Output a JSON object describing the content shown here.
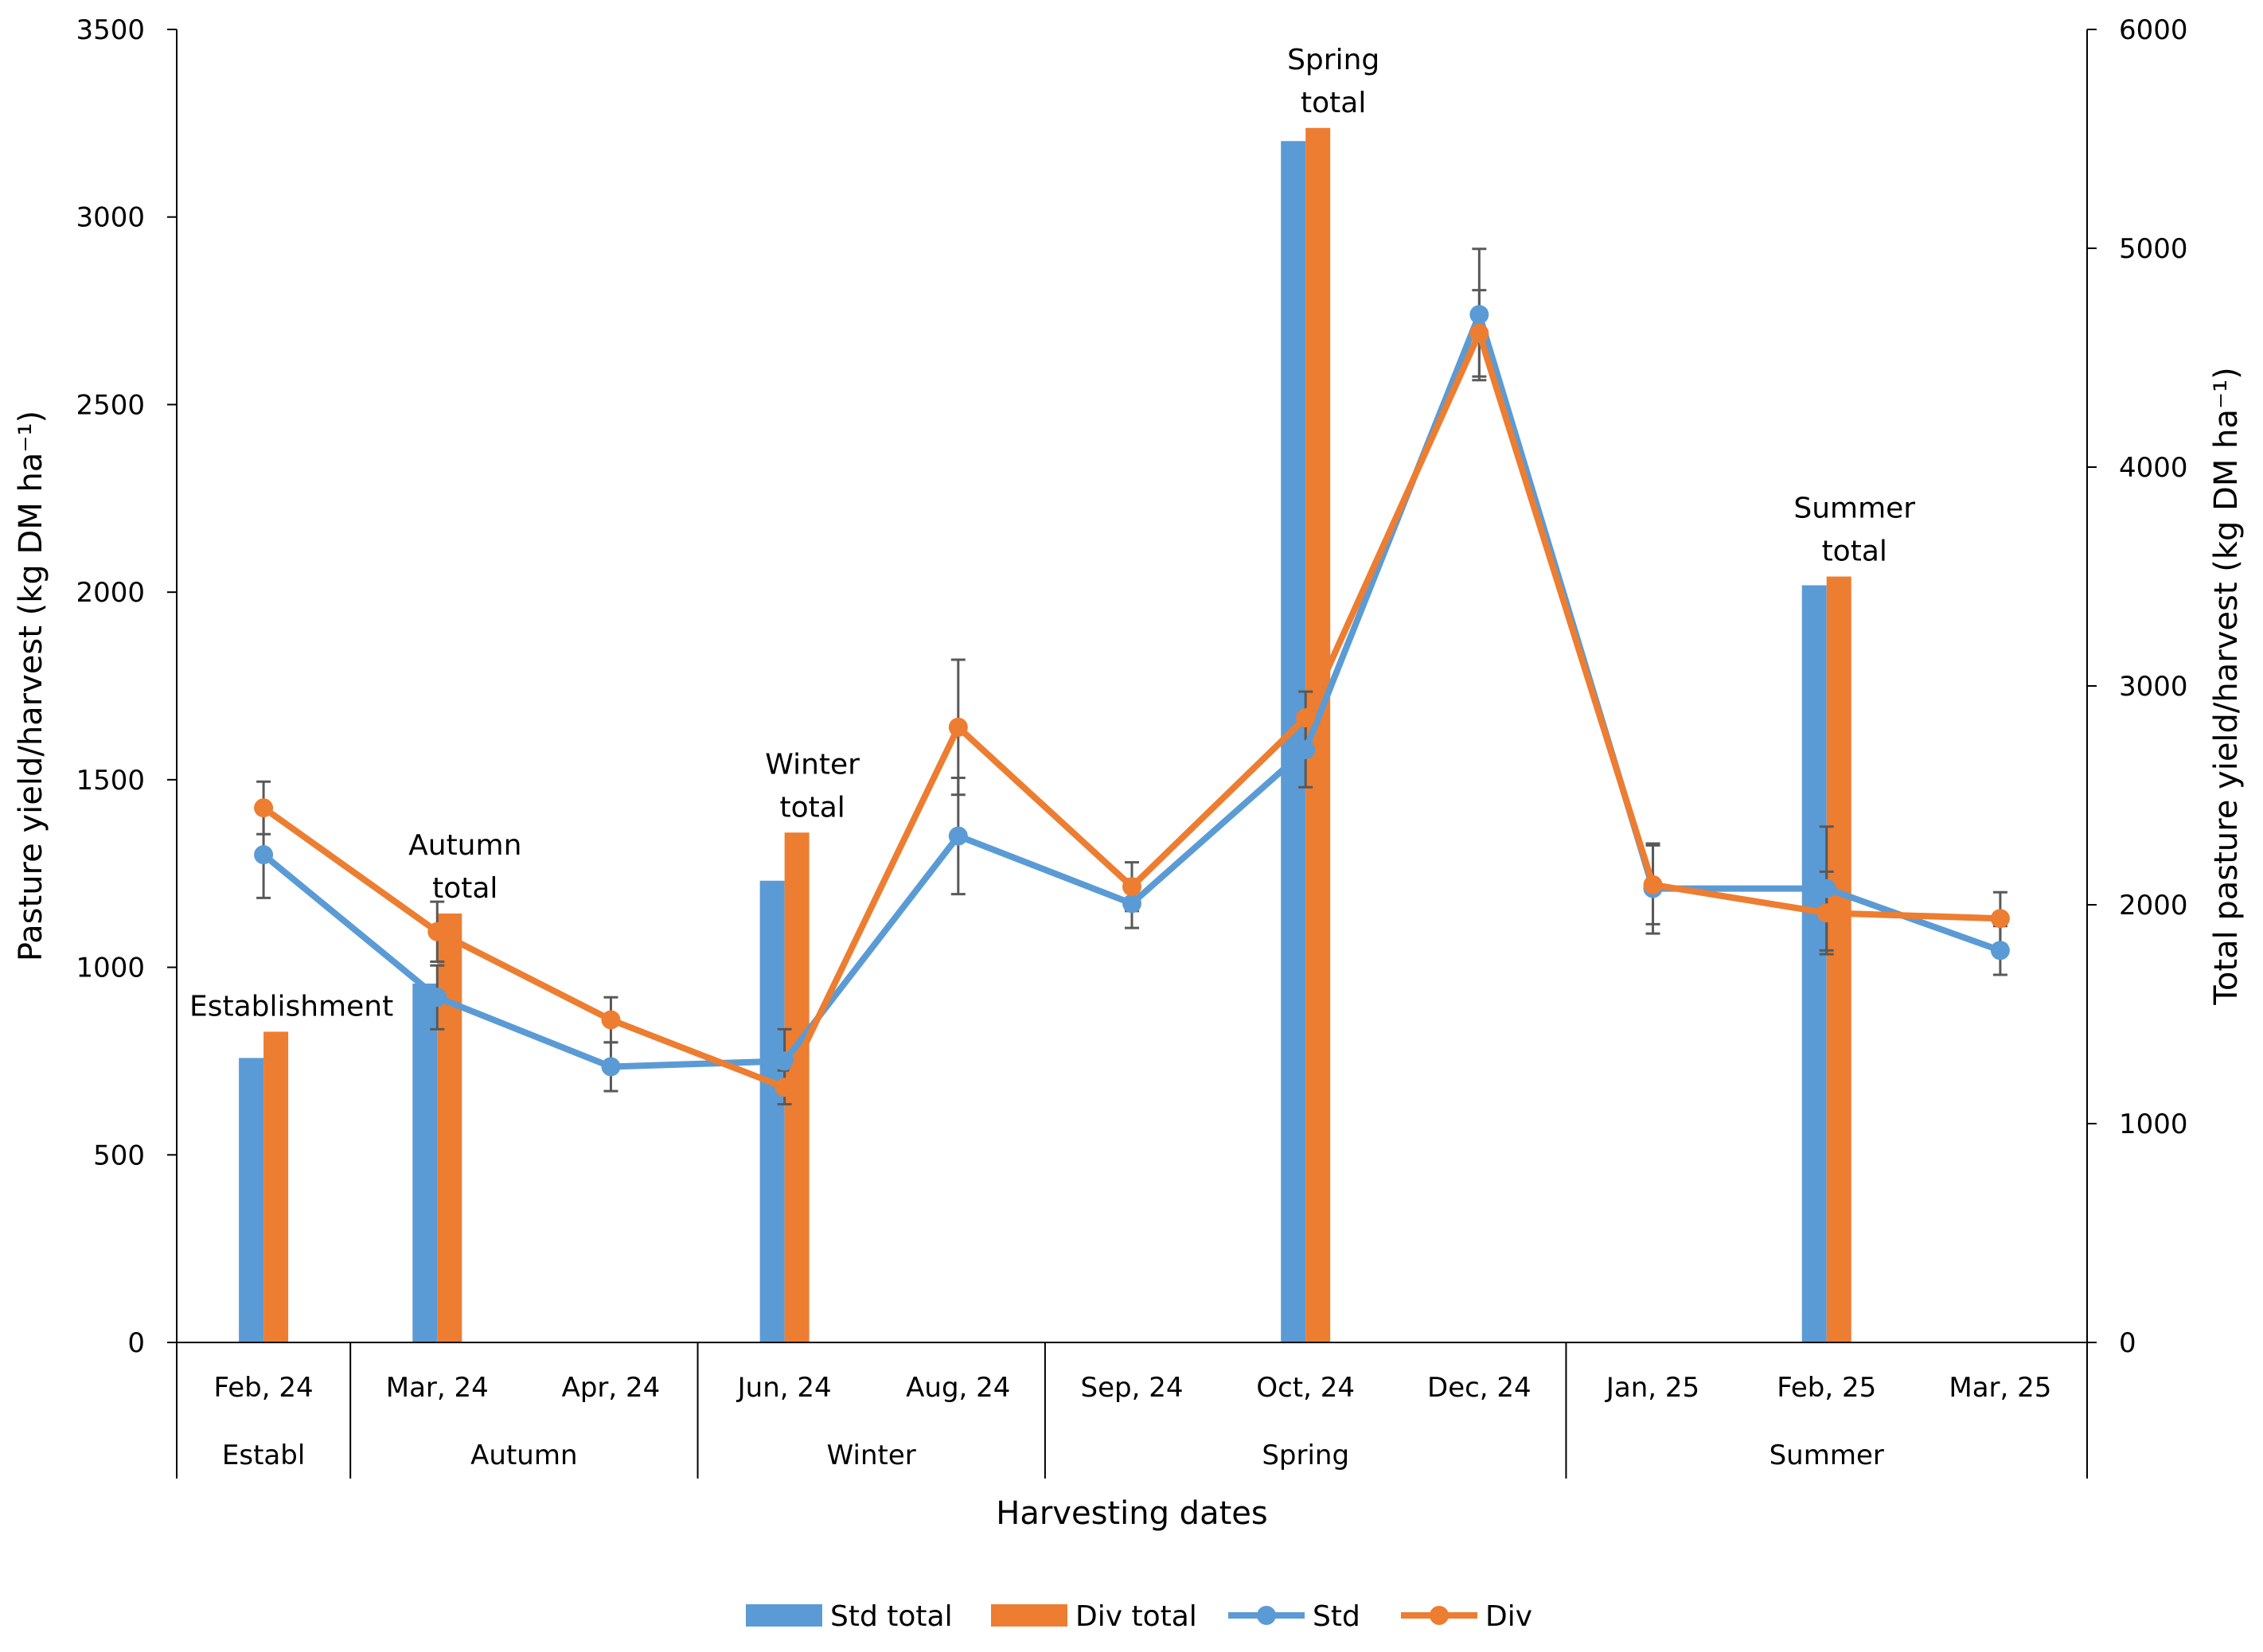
{
  "chart_data": {
    "type": "bar+line",
    "xlabel": "Harvesting dates",
    "ylabel": "Pasture yield/harvest (kg DM ha⁻¹)",
    "ylabel_right": "Total pasture yield/harvest (kg DM ha⁻¹)",
    "ylim": [
      0,
      3500
    ],
    "y_ticks": [
      0,
      500,
      1000,
      1500,
      2000,
      2500,
      3000,
      3500
    ],
    "ylim_right": [
      0,
      6000
    ],
    "y_ticks_right": [
      0,
      1000,
      2000,
      3000,
      4000,
      5000,
      6000
    ],
    "categories": [
      "Feb, 24",
      "Mar, 24",
      "Apr, 24",
      "Jun, 24",
      "Aug, 24",
      "Sep, 24",
      "Oct, 24",
      "Dec, 24",
      "Jan, 25",
      "Feb, 25",
      "Mar, 25"
    ],
    "groups": [
      {
        "label": "Establ",
        "start": 0,
        "end": 0
      },
      {
        "label": "Autumn",
        "start": 1,
        "end": 2
      },
      {
        "label": "Winter",
        "start": 3,
        "end": 4
      },
      {
        "label": "Spring",
        "start": 5,
        "end": 7
      },
      {
        "label": "Summer",
        "start": 8,
        "end": 10
      }
    ],
    "bar_series": [
      {
        "name": "Std total",
        "color": "#5B9BD5",
        "axis": "right",
        "points": [
          {
            "index": 0,
            "value": 1300
          },
          {
            "index": 1,
            "value": 1640
          },
          {
            "index": 3,
            "value": 2110
          },
          {
            "index": 6,
            "value": 5490
          },
          {
            "index": 9,
            "value": 3460
          }
        ]
      },
      {
        "name": "Div total",
        "color": "#ED7D31",
        "axis": "right",
        "points": [
          {
            "index": 0,
            "value": 1420
          },
          {
            "index": 1,
            "value": 1960
          },
          {
            "index": 3,
            "value": 2330
          },
          {
            "index": 6,
            "value": 5550
          },
          {
            "index": 9,
            "value": 3500
          }
        ]
      }
    ],
    "line_series": [
      {
        "name": "Std",
        "color": "#5B9BD5",
        "axis": "left",
        "values": [
          1300,
          920,
          735,
          750,
          1350,
          1170,
          1580,
          2740,
          1210,
          1210,
          1045
        ],
        "errors": [
          115,
          85,
          65,
          85,
          155,
          65,
          100,
          175,
          120,
          165,
          65
        ]
      },
      {
        "name": "Div",
        "color": "#ED7D31",
        "axis": "left",
        "values": [
          1425,
          1095,
          860,
          680,
          1640,
          1215,
          1665,
          2690,
          1220,
          1145,
          1130
        ],
        "errors": [
          70,
          80,
          60,
          45,
          180,
          65,
          70,
          115,
          105,
          110,
          70
        ]
      }
    ],
    "annotations": [
      {
        "index": 0,
        "lines": [
          "Establishment"
        ]
      },
      {
        "index": 1,
        "lines": [
          "Autumn",
          "total"
        ]
      },
      {
        "index": 3,
        "lines": [
          "Winter",
          "total"
        ]
      },
      {
        "index": 6,
        "lines": [
          "Spring",
          "total"
        ]
      },
      {
        "index": 9,
        "lines": [
          "Summer",
          "total"
        ]
      }
    ],
    "legend": [
      "Std total",
      "Div total",
      "Std",
      "Div"
    ],
    "legend_position": "bottom"
  }
}
